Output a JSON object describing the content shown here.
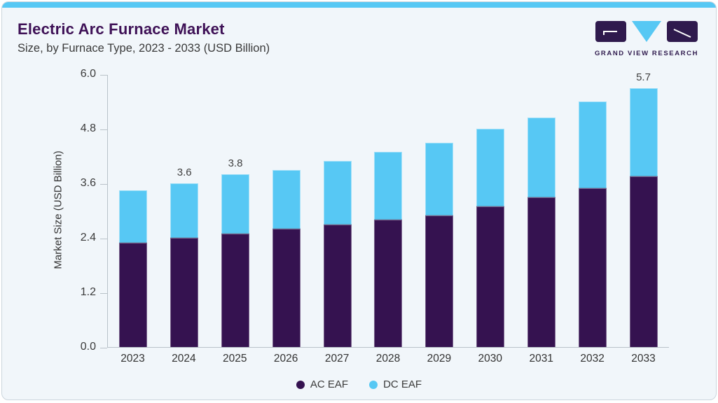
{
  "header": {
    "title": "Electric Arc Furnace Market",
    "subtitle": "Size, by Furnace Type, 2023 - 2033 (USD Billion)"
  },
  "logo": {
    "name": "Grand View Research logo",
    "text": "GRAND VIEW RESEARCH"
  },
  "chart_data": {
    "type": "bar",
    "stacked": true,
    "title": "Electric Arc Furnace Market Size, by Furnace Type, 2023 - 2033 (USD Billion)",
    "categories": [
      "2023",
      "2024",
      "2025",
      "2026",
      "2027",
      "2028",
      "2029",
      "2030",
      "2031",
      "2032",
      "2033"
    ],
    "series": [
      {
        "name": "AC EAF",
        "color": "#351250",
        "values": [
          2.3,
          2.4,
          2.5,
          2.6,
          2.7,
          2.8,
          2.9,
          3.1,
          3.3,
          3.5,
          3.75
        ]
      },
      {
        "name": "DC EAF",
        "color": "#57c8f4",
        "values": [
          1.15,
          1.2,
          1.3,
          1.3,
          1.4,
          1.5,
          1.6,
          1.7,
          1.75,
          1.9,
          1.95
        ]
      }
    ],
    "totals": [
      3.45,
      3.6,
      3.8,
      3.9,
      4.1,
      4.3,
      4.5,
      4.8,
      5.05,
      5.4,
      5.7
    ],
    "data_labels_shown": {
      "2024": "3.6",
      "2025": "3.8",
      "2033": "5.7"
    },
    "xlabel": "",
    "ylabel": "Market Size (USD Billion)",
    "ylim": [
      0,
      6
    ],
    "yticks": [
      "0.0",
      "1.2",
      "2.4",
      "3.6",
      "4.8",
      "6.0"
    ],
    "grid": false,
    "legend_position": "bottom"
  },
  "legend": {
    "items": [
      {
        "label": "AC EAF",
        "color": "#351250"
      },
      {
        "label": "DC EAF",
        "color": "#57c8f4"
      }
    ]
  },
  "colors": {
    "accent_blue": "#57c8f4",
    "brand_purple": "#351250",
    "title_purple": "#3e1156",
    "card_background": "#f1f6fa",
    "axis_line": "#b9c2c9"
  }
}
